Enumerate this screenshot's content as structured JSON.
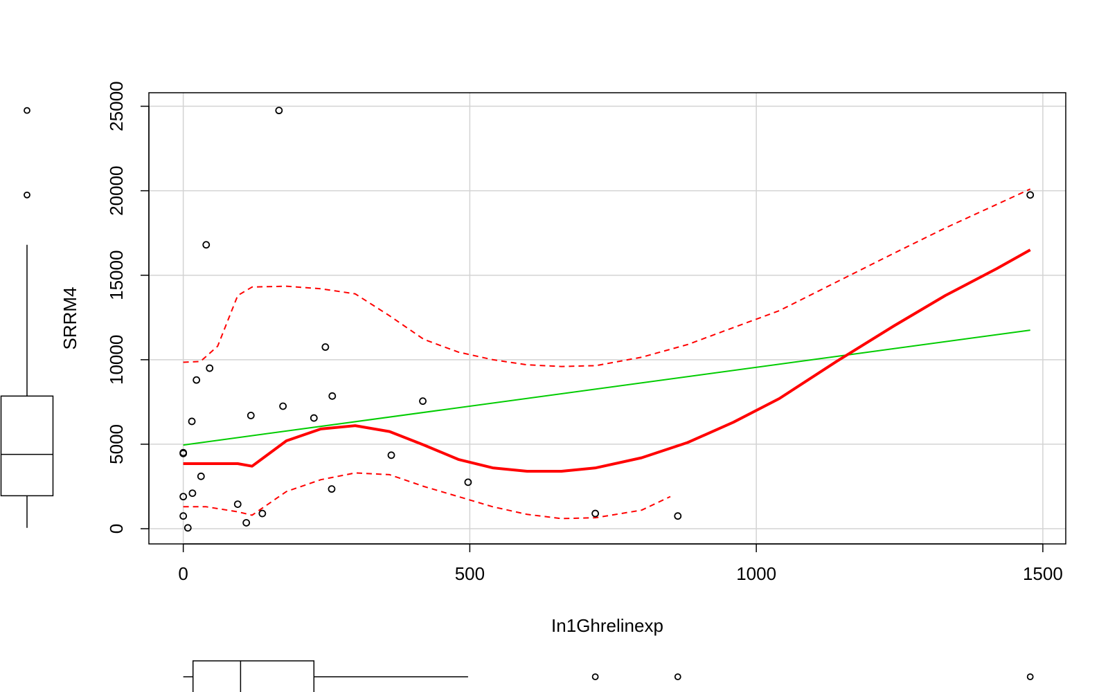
{
  "chart_data": {
    "type": "scatter",
    "xlabel": "In1Ghrelinexp",
    "ylabel": "SRRM4",
    "xlim": [
      -60,
      1540
    ],
    "ylim": [
      -900,
      25800
    ],
    "x_ticks": [
      0,
      500,
      1000,
      1500
    ],
    "y_ticks": [
      0,
      5000,
      10000,
      15000,
      20000,
      25000
    ],
    "x_tick_labels": [
      "0",
      "500",
      "1000",
      "1500"
    ],
    "y_tick_labels": [
      "0",
      "5000",
      "10000",
      "15000",
      "20000",
      "25000"
    ],
    "grid": true,
    "points": [
      {
        "x": 0,
        "y": 4500
      },
      {
        "x": 0,
        "y": 4450
      },
      {
        "x": 0,
        "y": 1900
      },
      {
        "x": 0,
        "y": 750
      },
      {
        "x": 8,
        "y": 50
      },
      {
        "x": 15,
        "y": 6350
      },
      {
        "x": 16,
        "y": 2100
      },
      {
        "x": 23,
        "y": 8800
      },
      {
        "x": 31,
        "y": 3100
      },
      {
        "x": 40,
        "y": 16800
      },
      {
        "x": 46,
        "y": 9500
      },
      {
        "x": 95,
        "y": 1450
      },
      {
        "x": 110,
        "y": 350
      },
      {
        "x": 118,
        "y": 6700
      },
      {
        "x": 138,
        "y": 900
      },
      {
        "x": 167,
        "y": 24750
      },
      {
        "x": 174,
        "y": 7250
      },
      {
        "x": 228,
        "y": 6550
      },
      {
        "x": 248,
        "y": 10750
      },
      {
        "x": 259,
        "y": 2350
      },
      {
        "x": 260,
        "y": 7850
      },
      {
        "x": 363,
        "y": 4350
      },
      {
        "x": 418,
        "y": 7550
      },
      {
        "x": 497,
        "y": 2750
      },
      {
        "x": 719,
        "y": 900
      },
      {
        "x": 863,
        "y": 750
      },
      {
        "x": 1478,
        "y": 19750
      }
    ],
    "series": [
      {
        "type": "linear-fit",
        "color": "#00cc00",
        "x": [
          0,
          1478
        ],
        "y": [
          4950,
          11750
        ]
      },
      {
        "type": "smooth",
        "color": "#ff0000",
        "x": [
          0,
          40,
          95,
          120,
          180,
          240,
          300,
          360,
          420,
          480,
          540,
          600,
          660,
          720,
          800,
          880,
          960,
          1040,
          1140,
          1240,
          1330,
          1420,
          1478
        ],
        "y": [
          3850,
          3850,
          3850,
          3700,
          5200,
          5900,
          6100,
          5750,
          4950,
          4100,
          3600,
          3400,
          3400,
          3600,
          4200,
          5100,
          6300,
          7700,
          9900,
          12000,
          13800,
          15400,
          16500
        ]
      },
      {
        "type": "smooth-band-upper",
        "color": "#ff0000",
        "dashed": true,
        "x": [
          0,
          30,
          60,
          95,
          120,
          180,
          240,
          300,
          360,
          420,
          480,
          540,
          600,
          660,
          720,
          800,
          880,
          960,
          1040,
          1140,
          1240,
          1330,
          1420,
          1478
        ],
        "y": [
          9850,
          9900,
          10800,
          13800,
          14300,
          14350,
          14200,
          13900,
          12600,
          11200,
          10450,
          10000,
          9700,
          9600,
          9650,
          10150,
          10900,
          11900,
          12900,
          14600,
          16300,
          17800,
          19200,
          20100
        ]
      },
      {
        "type": "smooth-band-lower",
        "color": "#ff0000",
        "dashed": true,
        "x": [
          0,
          40,
          95,
          120,
          180,
          240,
          300,
          360,
          420,
          480,
          540,
          600,
          660,
          720,
          800,
          850
        ],
        "y": [
          1300,
          1300,
          1000,
          800,
          2200,
          2900,
          3300,
          3200,
          2500,
          1900,
          1300,
          850,
          600,
          650,
          1100,
          1900
        ]
      }
    ],
    "x_boxplot": {
      "q1": 17,
      "median": 100,
      "q3": 228,
      "whisker_low": 0,
      "whisker_high": 497,
      "outliers": [
        719,
        863,
        1478
      ]
    },
    "y_boxplot": {
      "q1": 1950,
      "median": 4400,
      "q3": 7850,
      "whisker_low": 50,
      "whisker_high": 16800,
      "outliers": [
        19750,
        24750
      ]
    }
  }
}
